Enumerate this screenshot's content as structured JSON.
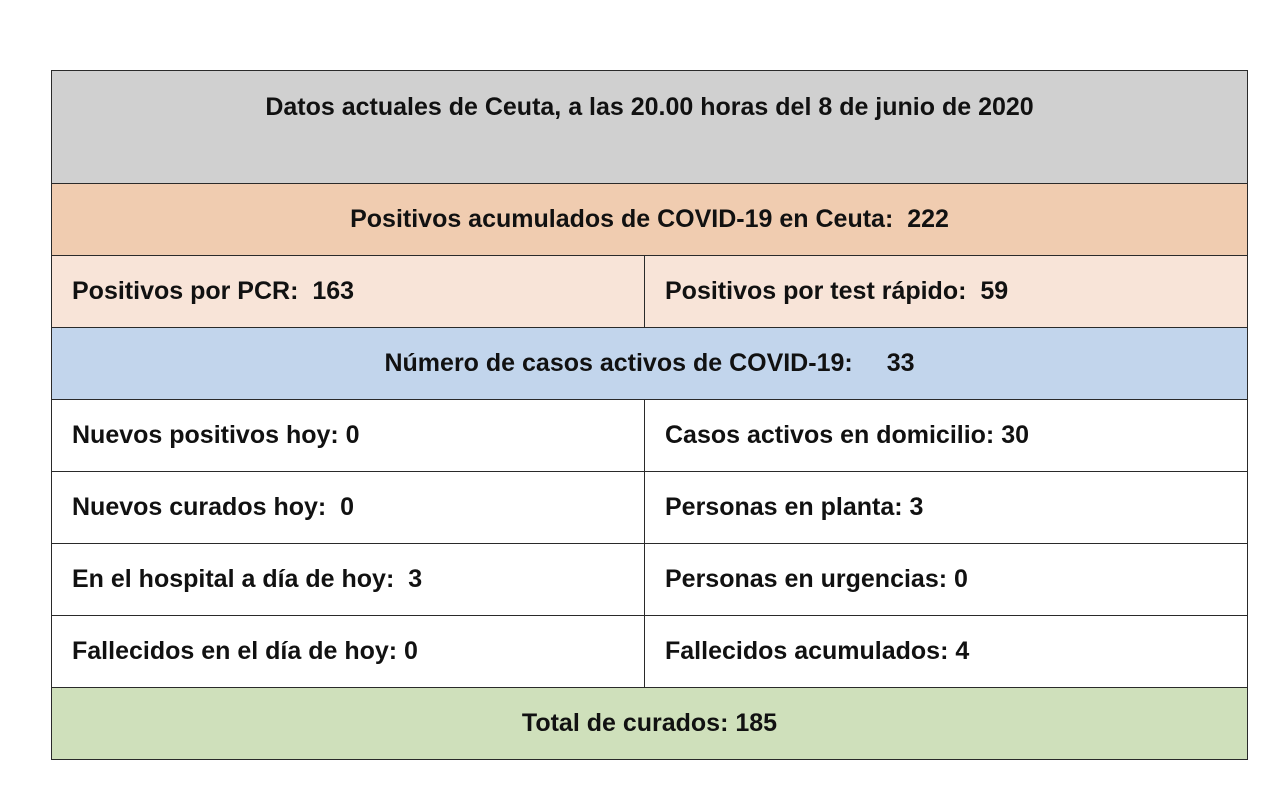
{
  "colors": {
    "title_bg": "#d0d0d0",
    "positives_bg": "#f0ccb0",
    "positives_detail_bg": "#f8e4d8",
    "active_bg": "#c2d5ec",
    "body_bg": "#ffffff",
    "cured_bg": "#cfe0bb",
    "border": "#2a2a2a"
  },
  "report": {
    "title": "Datos actuales de Ceuta, a las 20.00 horas del 8 de junio de 2020",
    "positives_total": {
      "label": "Positivos acumulados de COVID-19 en Ceuta:",
      "value": "222"
    },
    "pcr": {
      "label": "Positivos por PCR:",
      "value": "163"
    },
    "rapid_test": {
      "label": "Positivos por test rápido:",
      "value": "59"
    },
    "active_cases": {
      "label": "Número de casos activos de COVID-19:",
      "value": "33"
    },
    "rows": [
      {
        "left": {
          "label": "Nuevos positivos hoy:",
          "value": "0"
        },
        "right": {
          "label": "Casos activos en domicilio:",
          "value": "30"
        }
      },
      {
        "left": {
          "label": "Nuevos curados hoy:",
          "value": "0"
        },
        "right": {
          "label": "Personas en planta:",
          "value": "3"
        }
      },
      {
        "left": {
          "label": "En el hospital a día de hoy:",
          "value": "3"
        },
        "right": {
          "label": "Personas en urgencias:",
          "value": "0"
        }
      },
      {
        "left": {
          "label": "Fallecidos en el día de hoy:",
          "value": "0"
        },
        "right": {
          "label": "Fallecidos acumulados:",
          "value": "4"
        }
      }
    ],
    "total_cured": {
      "label": "Total de curados:",
      "value": "185"
    }
  }
}
